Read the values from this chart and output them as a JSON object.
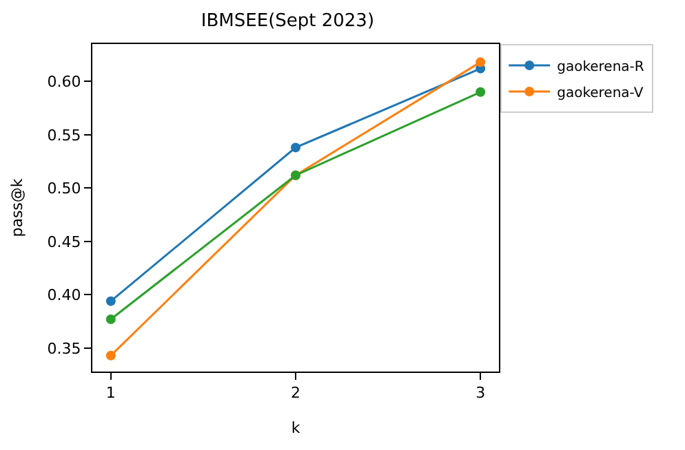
{
  "chart_data": {
    "type": "line",
    "title": "IBMSEE(Sept 2023)",
    "xlabel": "k",
    "ylabel": "pass@k",
    "x": [
      1,
      2,
      3
    ],
    "series": [
      {
        "name": "gaokerena-R",
        "color": "#1f77b4",
        "values": [
          0.394,
          0.538,
          0.612
        ]
      },
      {
        "name": "gaokerena-V",
        "color": "#ff7f0e",
        "values": [
          0.343,
          0.512,
          0.618
        ]
      },
      {
        "color": "#2ca02c",
        "values": [
          0.377,
          0.512,
          0.59
        ]
      }
    ],
    "xlim": [
      0.9,
      3.1
    ],
    "xticks": [
      1,
      2,
      3
    ],
    "ylim": [
      0.328,
      0.635
    ],
    "yticks": [
      0.35,
      {
        "value": 0.4,
        "label": "0.40"
      },
      0.45,
      {
        "value": 0.5,
        "label": "0.50"
      },
      0.55,
      {
        "value": 0.6,
        "label": "0.60"
      }
    ],
    "marker": "circle",
    "legend": "top right"
  }
}
